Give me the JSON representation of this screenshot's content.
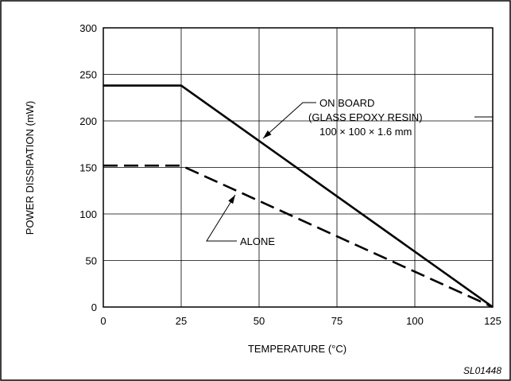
{
  "chart_data": {
    "type": "line",
    "xlabel": "TEMPERATURE (°C)",
    "ylabel": "POWER DISSIPATION (mW)",
    "xlim": [
      0,
      125
    ],
    "ylim": [
      0,
      300
    ],
    "x_ticks": [
      0,
      25,
      50,
      75,
      100,
      125
    ],
    "y_ticks": [
      0,
      50,
      100,
      150,
      200,
      250,
      300
    ],
    "grid": true,
    "series": [
      {
        "name": "ON BOARD (GLASS EPOXY RESIN) 100 × 100 × 1.6 mm",
        "style": "solid",
        "x": [
          0,
          25,
          125
        ],
        "y": [
          238,
          238,
          0
        ]
      },
      {
        "name": "ALONE",
        "style": "dashed",
        "x": [
          0,
          25,
          125
        ],
        "y": [
          152,
          152,
          0
        ]
      }
    ],
    "annotations": {
      "on_board_line1": "ON BOARD",
      "on_board_line2": "(GLASS EPOXY RESIN)",
      "on_board_line3": "100 × 100 × 1.6 mm",
      "alone": "ALONE"
    },
    "figure_code": "SL01448"
  }
}
